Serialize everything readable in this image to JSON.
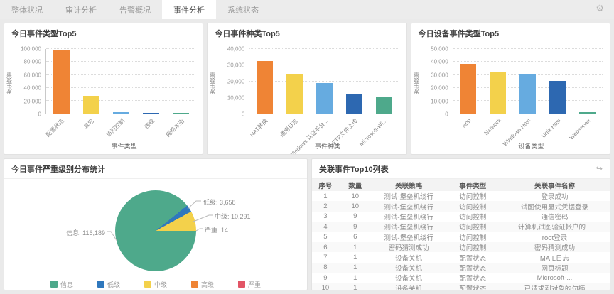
{
  "nav": {
    "tabs": [
      {
        "label": "整体状况",
        "active": false
      },
      {
        "label": "审计分析",
        "active": false
      },
      {
        "label": "告警概况",
        "active": false
      },
      {
        "label": "事件分析",
        "active": true
      },
      {
        "label": "系统状态",
        "active": false
      }
    ],
    "settings_icon": "gear"
  },
  "palette": [
    "#ef8435",
    "#f3d14b",
    "#66abe0",
    "#2d68b1",
    "#4ea98b"
  ],
  "chart_data": [
    {
      "type": "bar",
      "title": "今日事件类型Top5",
      "categories": [
        "配置状态",
        "其它",
        "访问控制",
        "违规",
        "网络攻击"
      ],
      "values": [
        98000,
        27000,
        2500,
        1200,
        300
      ],
      "xlabel": "事件类型",
      "ylabel": "发生数量",
      "ylim": [
        0,
        100000
      ],
      "tick_step": 20000,
      "grid": "dotted"
    },
    {
      "type": "bar",
      "title": "今日事件种类Top5",
      "categories": [
        "NAT转换",
        "通用日志",
        "Windows 认证平台...",
        "FTP文件上传",
        "Microsoft-Wi..."
      ],
      "values": [
        32500,
        24500,
        19000,
        12000,
        10000
      ],
      "xlabel": "事件种类",
      "ylabel": "发生数量",
      "ylim": [
        0,
        40000
      ],
      "tick_step": 10000,
      "grid": "dotted"
    },
    {
      "type": "bar",
      "title": "今日设备事件类型Top5",
      "categories": [
        "App",
        "Network",
        "Windows Host",
        "Unix Host",
        "Webserver"
      ],
      "values": [
        38500,
        32200,
        31000,
        25500,
        1000
      ],
      "xlabel": "设备类型",
      "ylabel": "发生数量",
      "ylim": [
        0,
        50000
      ],
      "tick_step": 10000,
      "grid": "dotted"
    },
    {
      "type": "pie",
      "title": "今日事件严重级别分布统计",
      "slices": [
        {
          "label": "信息",
          "value": 116189,
          "color": "#4ea98b"
        },
        {
          "label": "低级",
          "value": 3658,
          "color": "#2f78bd"
        },
        {
          "label": "中级",
          "value": 10291,
          "color": "#f3d14b"
        },
        {
          "label": "高级",
          "value": 0,
          "color": "#ef8435"
        },
        {
          "label": "严重",
          "value": 14,
          "color": "#e25566"
        }
      ],
      "callouts": [
        "低级: 3,658",
        "中级: 10,291",
        "严重: 14",
        "信息: 116,189"
      ],
      "legend": [
        "信息",
        "低级",
        "中级",
        "高级",
        "严重"
      ],
      "legend_position": "bottom"
    }
  ],
  "table": {
    "title": "关联事件Top10列表",
    "headers": [
      "序号",
      "数量",
      "关联策略",
      "事件类型",
      "关联事件名称"
    ],
    "rows": [
      [
        "1",
        "10",
        "测试-堡垒机绕行",
        "访问控制",
        "登录成功"
      ],
      [
        "2",
        "10",
        "测试-堡垒机绕行",
        "访问控制",
        "试图使用显式凭据登录"
      ],
      [
        "3",
        "9",
        "测试-堡垒机绕行",
        "访问控制",
        "通信密码"
      ],
      [
        "4",
        "9",
        "测试-堡垒机绕行",
        "访问控制",
        "计算机试图验证帐户的..."
      ],
      [
        "5",
        "6",
        "测试-堡垒机绕行",
        "访问控制",
        "root登录"
      ],
      [
        "6",
        "1",
        "密码猜测成功",
        "访问控制",
        "密码猜测成功"
      ],
      [
        "7",
        "1",
        "设备关机",
        "配置状态",
        "MAIL日志"
      ],
      [
        "8",
        "1",
        "设备关机",
        "配置状态",
        "网页标题"
      ],
      [
        "9",
        "1",
        "设备关机",
        "配置状态",
        "Microsoft-..."
      ],
      [
        "10",
        "1",
        "设备关机",
        "配置状态",
        "已请求到对象的句柄"
      ]
    ]
  }
}
